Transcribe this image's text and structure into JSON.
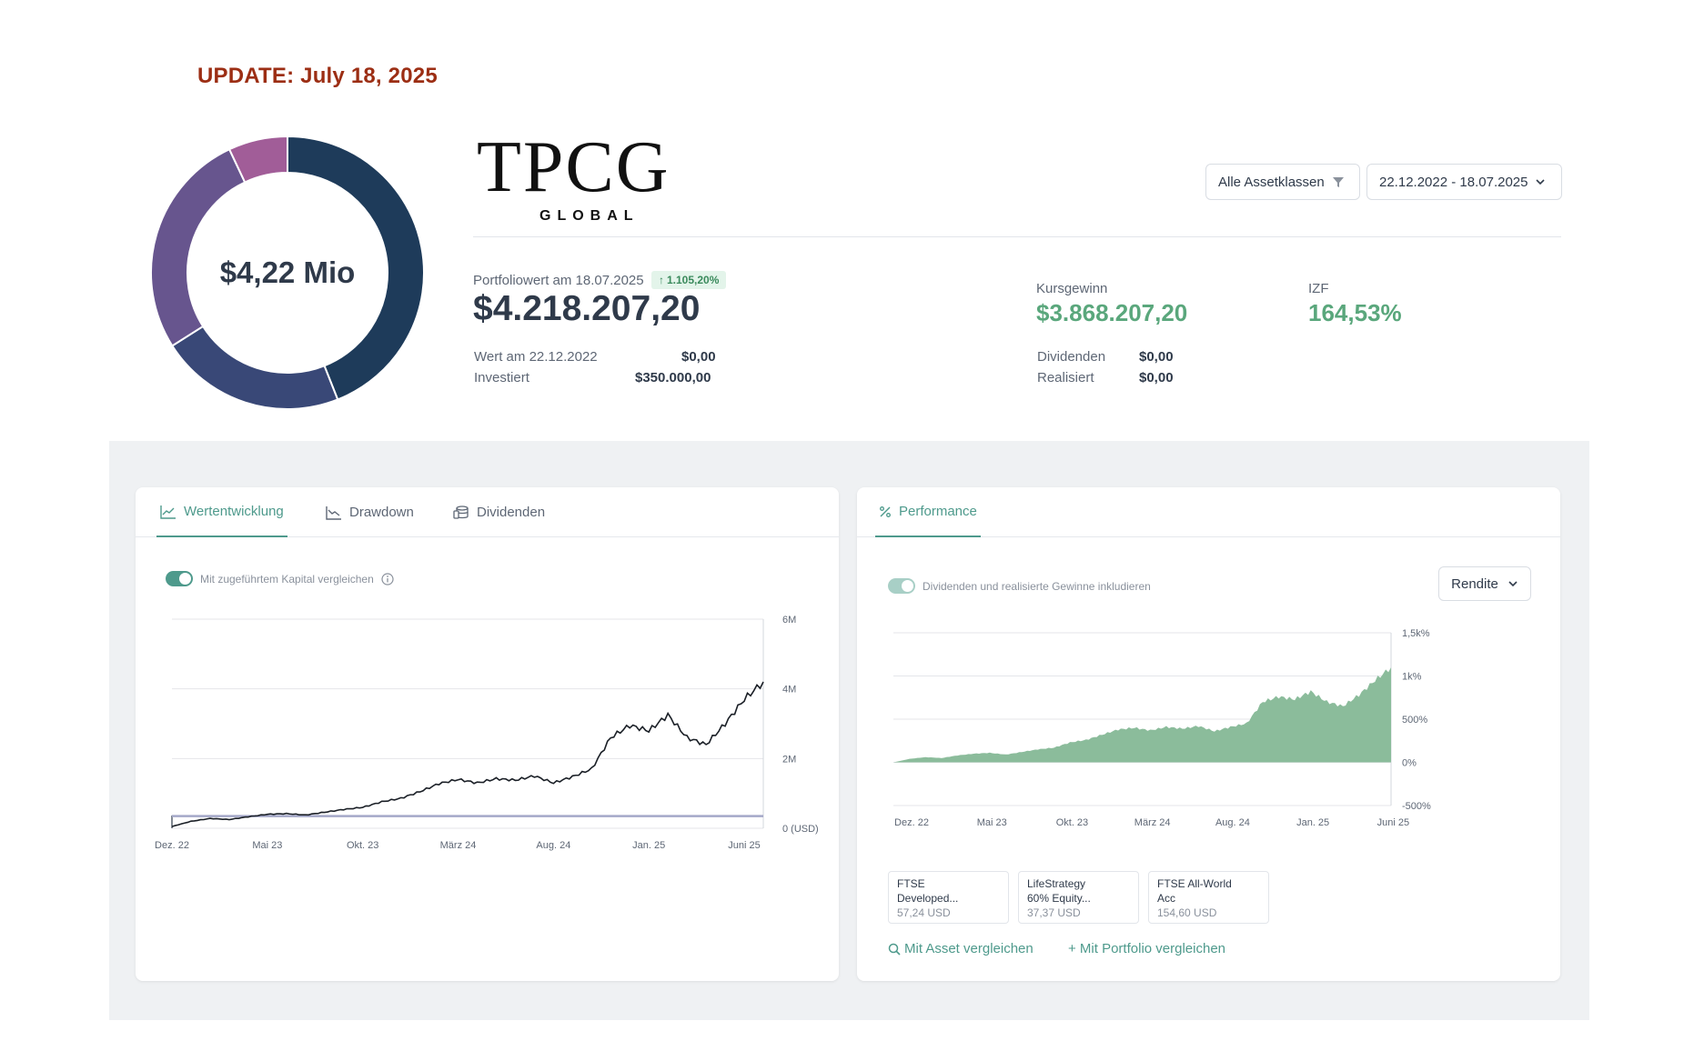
{
  "update": {
    "text": "UPDATE:  July 18, 2025"
  },
  "donut": {
    "label": "$4,22 Mio",
    "segments": [
      {
        "fraction": 0.44,
        "color": "#1e3b5a"
      },
      {
        "fraction": 0.22,
        "color": "#394877"
      },
      {
        "fraction": 0.27,
        "color": "#67558e"
      },
      {
        "fraction": 0.07,
        "color": "#a15d98"
      }
    ]
  },
  "logo": {
    "wordmark": "TPCG",
    "subline": "GLOBAL"
  },
  "filters": {
    "asset_classes": "Alle Assetklassen",
    "date_range": "22.12.2022 - 18.07.2025"
  },
  "summary": {
    "portfolio_label": "Portfoliowert am 18.07.2025",
    "portfolio_change": "1.105,20%",
    "portfolio_value": "$4.218.207,20",
    "wert_label": "Wert am 22.12.2022",
    "wert_value": "$0,00",
    "investiert_label": "Investiert",
    "investiert_value": "$350.000,00",
    "kursgewinn_label": "Kursgewinn",
    "kursgewinn_value": "$3.868.207,20",
    "izf_label": "IZF",
    "izf_value": "164,53%",
    "dividenden_label": "Dividenden",
    "dividenden_value": "$0,00",
    "realisiert_label": "Realisiert",
    "realisiert_value": "$0,00"
  },
  "left_card": {
    "tabs": [
      {
        "label": "Wertentwicklung",
        "icon": "line-chart-icon"
      },
      {
        "label": "Drawdown",
        "icon": "drawdown-icon"
      },
      {
        "label": "Dividenden",
        "icon": "coins-icon"
      }
    ],
    "toggle_label": "Mit zugeführtem Kapital vergleichen",
    "info_icon": "info-icon"
  },
  "right_card": {
    "tabs": [
      {
        "label": "Performance",
        "icon": "percent-icon"
      }
    ],
    "toggle_label": "Dividenden und realisierte Gewinne inkludieren",
    "dropdown": "Rendite",
    "compare": [
      {
        "line1": "FTSE",
        "line2": "Developed...",
        "price": "57,24 USD"
      },
      {
        "line1": "LifeStrategy",
        "line2": "60% Equity...",
        "price": "37,37 USD"
      },
      {
        "line1": "FTSE All-World",
        "line2": "Acc",
        "price": "154,60 USD"
      }
    ],
    "compare_asset": "Mit Asset vergleichen",
    "compare_portfolio": "+ Mit Portfolio vergleichen"
  },
  "chart_data": [
    {
      "type": "line",
      "x_ticks": [
        "Dez. 22",
        "Mai 23",
        "Okt. 23",
        "März 24",
        "Aug. 24",
        "Jan. 25",
        "Juni 25"
      ],
      "y_ticks": [
        "0 (USD)",
        "2M",
        "4M",
        "6M"
      ],
      "ylim": [
        0,
        6000000
      ],
      "grid": true,
      "series": [
        {
          "x": [
            "2022-12",
            "2023-01",
            "2023-02",
            "2023-03",
            "2023-04",
            "2023-05",
            "2023-06",
            "2023-07",
            "2023-08",
            "2023-09",
            "2023-10",
            "2023-11",
            "2023-12",
            "2024-01",
            "2024-02",
            "2024-03",
            "2024-04",
            "2024-05",
            "2024-06",
            "2024-07",
            "2024-08",
            "2024-09",
            "2024-10",
            "2024-11",
            "2024-12",
            "2025-01",
            "2025-02",
            "2025-03",
            "2025-04",
            "2025-05",
            "2025-06",
            "2025-07"
          ],
          "values": [
            50000,
            200000,
            280000,
            250000,
            330000,
            400000,
            420000,
            380000,
            460000,
            540000,
            600000,
            760000,
            860000,
            1050000,
            1280000,
            1400000,
            1300000,
            1420000,
            1380000,
            1500000,
            1300000,
            1480000,
            1700000,
            2600000,
            2950000,
            2800000,
            3250000,
            2600000,
            2400000,
            3000000,
            3700000,
            4200000
          ]
        },
        {
          "x": [
            "2022-12",
            "2025-07"
          ],
          "values": [
            350000,
            350000
          ]
        }
      ]
    },
    {
      "type": "area",
      "x_ticks": [
        "Dez. 22",
        "Mai 23",
        "Okt. 23",
        "März 24",
        "Aug. 24",
        "Jan. 25",
        "Juni 25"
      ],
      "y_ticks": [
        "-500%",
        "0%",
        "500%",
        "1k%",
        "1,5k%"
      ],
      "ylim": [
        -500,
        1500
      ],
      "grid": true,
      "series": [
        {
          "x": [
            "2022-12",
            "2023-01",
            "2023-02",
            "2023-03",
            "2023-04",
            "2023-05",
            "2023-06",
            "2023-07",
            "2023-08",
            "2023-09",
            "2023-10",
            "2023-11",
            "2023-12",
            "2024-01",
            "2024-02",
            "2024-03",
            "2024-04",
            "2024-05",
            "2024-06",
            "2024-07",
            "2024-08",
            "2024-09",
            "2024-10",
            "2024-11",
            "2024-12",
            "2025-01",
            "2025-02",
            "2025-03",
            "2025-04",
            "2025-05",
            "2025-06",
            "2025-07"
          ],
          "values": [
            0,
            40,
            60,
            50,
            80,
            100,
            110,
            90,
            120,
            150,
            170,
            230,
            260,
            320,
            380,
            400,
            370,
            410,
            390,
            420,
            360,
            410,
            450,
            700,
            760,
            730,
            820,
            700,
            650,
            780,
            950,
            1100
          ]
        }
      ],
      "color": "#8bbc9b"
    }
  ]
}
